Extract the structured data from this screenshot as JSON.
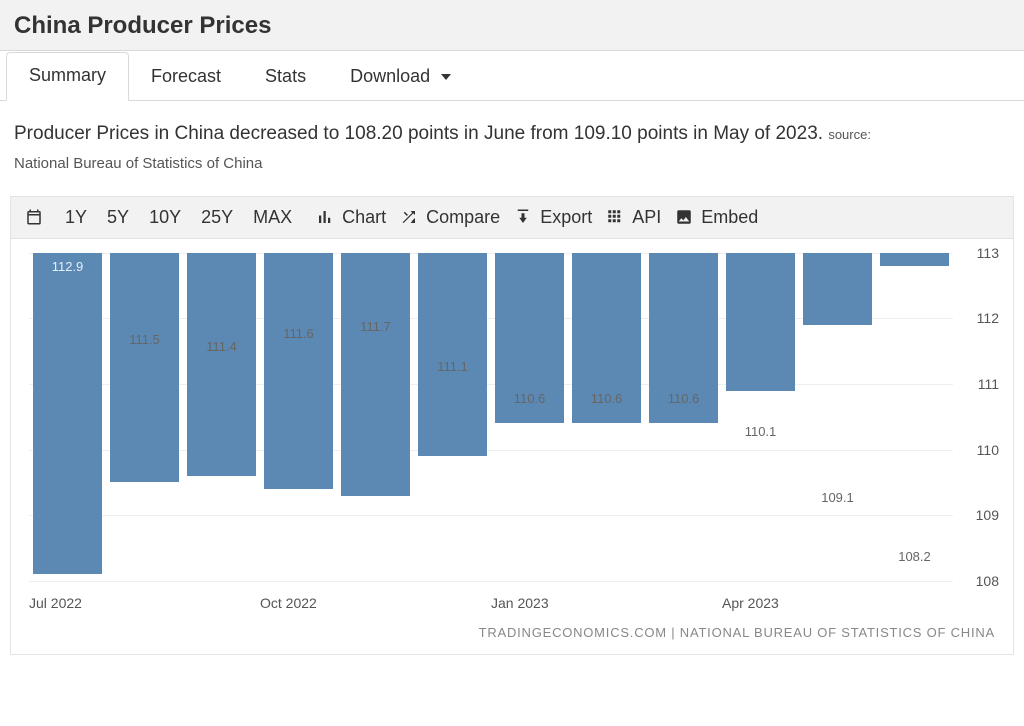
{
  "header": {
    "title": "China Producer Prices"
  },
  "tabs": {
    "items": [
      "Summary",
      "Forecast",
      "Stats",
      "Download"
    ],
    "active_index": 0,
    "dropdown_index": 3
  },
  "description": {
    "text": "Producer Prices in China decreased to 108.20 points in June from 109.10 points in May of 2023.",
    "source_label": "source:",
    "source_name": "National Bureau of Statistics of China"
  },
  "toolbar": {
    "ranges": [
      "1Y",
      "5Y",
      "10Y",
      "25Y",
      "MAX"
    ],
    "buttons": {
      "chart": "Chart",
      "compare": "Compare",
      "export": "Export",
      "api": "API",
      "embed": "Embed"
    }
  },
  "chart": {
    "type": "bar",
    "bar_color": "#5b89b4",
    "first_bar_label_inside": true,
    "background_color": "#ffffff",
    "grid_color": "#eeeeee",
    "ylim": [
      108,
      113
    ],
    "ytick_step": 1,
    "value_label_fontsize": 13,
    "axis_label_fontsize": 14,
    "categories": [
      "Jul 2022",
      "Aug 2022",
      "Sep 2022",
      "Oct 2022",
      "Nov 2022",
      "Dec 2022",
      "Jan 2023",
      "Feb 2023",
      "Mar 2023",
      "Apr 2023",
      "May 2023",
      "Jun 2023"
    ],
    "values": [
      112.9,
      111.5,
      111.4,
      111.6,
      111.7,
      111.1,
      110.6,
      110.6,
      110.6,
      110.1,
      109.1,
      108.2
    ],
    "value_labels": [
      "112.9",
      "111.5",
      "111.4",
      "111.6",
      "111.7",
      "111.1",
      "110.6",
      "110.6",
      "110.6",
      "110.1",
      "109.1",
      "108.2"
    ],
    "x_tick_labels": {
      "0": "Jul 2022",
      "3": "Oct 2022",
      "6": "Jan 2023",
      "9": "Apr 2023"
    },
    "attribution": "TRADINGECONOMICS.COM | NATIONAL BUREAU OF STATISTICS OF CHINA"
  }
}
